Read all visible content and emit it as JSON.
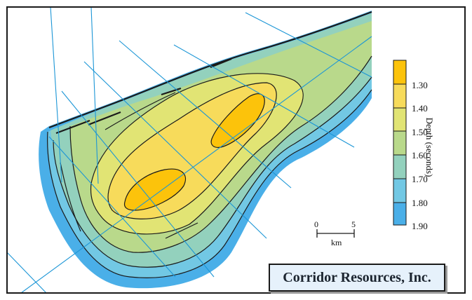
{
  "legend": {
    "title": "Depth (seconds)",
    "ticks": [
      "1.30",
      "1.40",
      "1.50",
      "1.60",
      "1.70",
      "1.80",
      "1.90"
    ],
    "colors": [
      "#fcc30b",
      "#f7db5b",
      "#e1e474",
      "#b9d98b",
      "#93d1bd",
      "#72c8e4",
      "#4aafe8"
    ]
  },
  "scale_bar": {
    "start_label": "0",
    "end_label": "5",
    "unit": "km"
  },
  "company": {
    "name": "Corridor Resources, Inc."
  },
  "colors": {
    "seismic_lines": "#1c96d6",
    "contours": "#1a1a1a",
    "frame": "#1a1a1a"
  }
}
